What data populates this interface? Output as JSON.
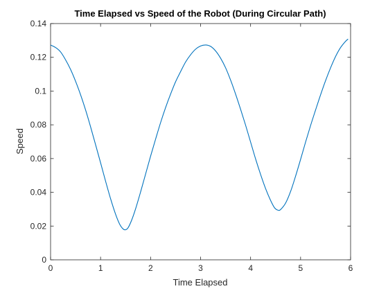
{
  "chart_data": {
    "type": "line",
    "title": "Time Elapsed vs Speed of the Robot (During Circular Path)",
    "xlabel": "Time Elapsed",
    "ylabel": "Speed",
    "xlim": [
      0,
      6
    ],
    "ylim": [
      0,
      0.14
    ],
    "xticks": [
      0,
      1,
      2,
      3,
      4,
      5,
      6
    ],
    "xtick_labels": [
      "0",
      "1",
      "2",
      "3",
      "4",
      "5",
      "6"
    ],
    "yticks": [
      0,
      0.02,
      0.04,
      0.06,
      0.08,
      0.1,
      0.12,
      0.14
    ],
    "ytick_labels": [
      "0",
      "0.02",
      "0.04",
      "0.06",
      "0.08",
      "0.1",
      "0.12",
      "0.14"
    ],
    "grid": false,
    "series": [
      {
        "color": "#0072bd",
        "x": [
          0,
          0.1,
          0.2,
          0.3,
          0.4,
          0.5,
          0.6,
          0.7,
          0.8,
          0.9,
          1.0,
          1.1,
          1.2,
          1.3,
          1.38,
          1.45,
          1.5,
          1.55,
          1.62,
          1.7,
          1.8,
          1.9,
          2.0,
          2.1,
          2.2,
          2.3,
          2.4,
          2.5,
          2.6,
          2.7,
          2.8,
          2.9,
          3.0,
          3.1,
          3.2,
          3.3,
          3.4,
          3.5,
          3.6,
          3.7,
          3.8,
          3.9,
          4.0,
          4.1,
          4.2,
          4.3,
          4.4,
          4.48,
          4.55,
          4.6,
          4.7,
          4.8,
          4.9,
          5.0,
          5.1,
          5.2,
          5.3,
          5.4,
          5.5,
          5.6,
          5.7,
          5.8,
          5.9,
          5.95
        ],
        "y": [
          0.1273,
          0.1258,
          0.1232,
          0.1185,
          0.1128,
          0.1058,
          0.0978,
          0.0888,
          0.0788,
          0.0682,
          0.0575,
          0.0466,
          0.0362,
          0.027,
          0.0212,
          0.0183,
          0.0178,
          0.019,
          0.0234,
          0.0302,
          0.0402,
          0.0508,
          0.0614,
          0.0715,
          0.0813,
          0.0902,
          0.0982,
          0.1055,
          0.1115,
          0.1172,
          0.1215,
          0.1248,
          0.1267,
          0.1273,
          0.1265,
          0.1238,
          0.1195,
          0.1138,
          0.1065,
          0.0982,
          0.0892,
          0.0798,
          0.0698,
          0.0598,
          0.0506,
          0.0422,
          0.0352,
          0.0308,
          0.0294,
          0.0298,
          0.0336,
          0.0405,
          0.0496,
          0.0595,
          0.0698,
          0.0796,
          0.0888,
          0.0978,
          0.1062,
          0.1138,
          0.1205,
          0.1258,
          0.1295,
          0.1308
        ]
      }
    ]
  }
}
